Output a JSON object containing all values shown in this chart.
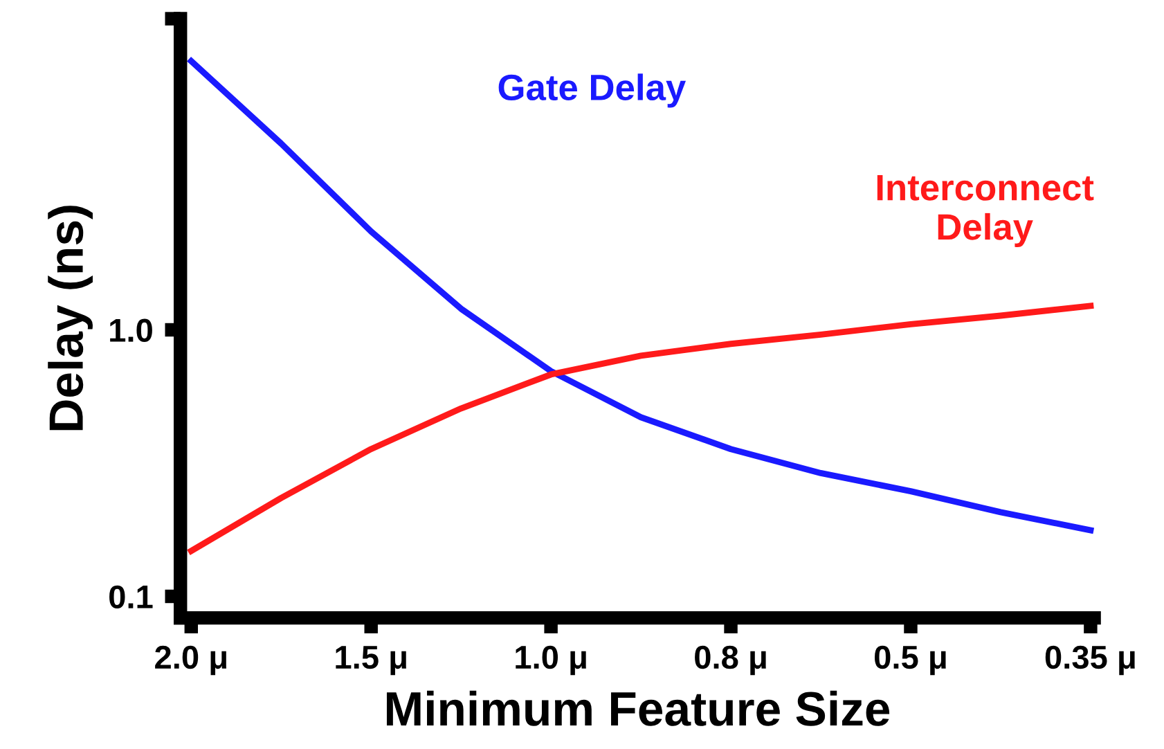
{
  "chart_data": {
    "type": "line",
    "xlabel": "Minimum Feature Size",
    "ylabel": "Delay (ns)",
    "categories": [
      "2.0 μ",
      null,
      "1.5 μ",
      null,
      "1.0 μ",
      null,
      "0.8 μ",
      null,
      "0.5 μ",
      null,
      "0.35 μ"
    ],
    "log": "y",
    "ylim": [
      0.083,
      14.7
    ],
    "yticks": [
      0.1,
      {
        "value": 1,
        "label": "1.0"
      },
      {
        "value": 14.7,
        "label": null
      }
    ],
    "grid": false,
    "legend": false,
    "marker": "none",
    "line_style": "solid",
    "series": [
      {
        "name": "Gate Delay",
        "color": "#1a1aff",
        "values": [
          10.2,
          5.0,
          2.34,
          1.2,
          0.7,
          0.47,
          0.357,
          0.29,
          0.248,
          0.207,
          0.177
        ]
      },
      {
        "name": "Interconnect\nDelay",
        "color": "#ff1a1a",
        "values": [
          0.148,
          0.234,
          0.357,
          0.507,
          0.68,
          0.8,
          0.886,
          0.96,
          1.05,
          1.13,
          1.23
        ]
      }
    ]
  }
}
